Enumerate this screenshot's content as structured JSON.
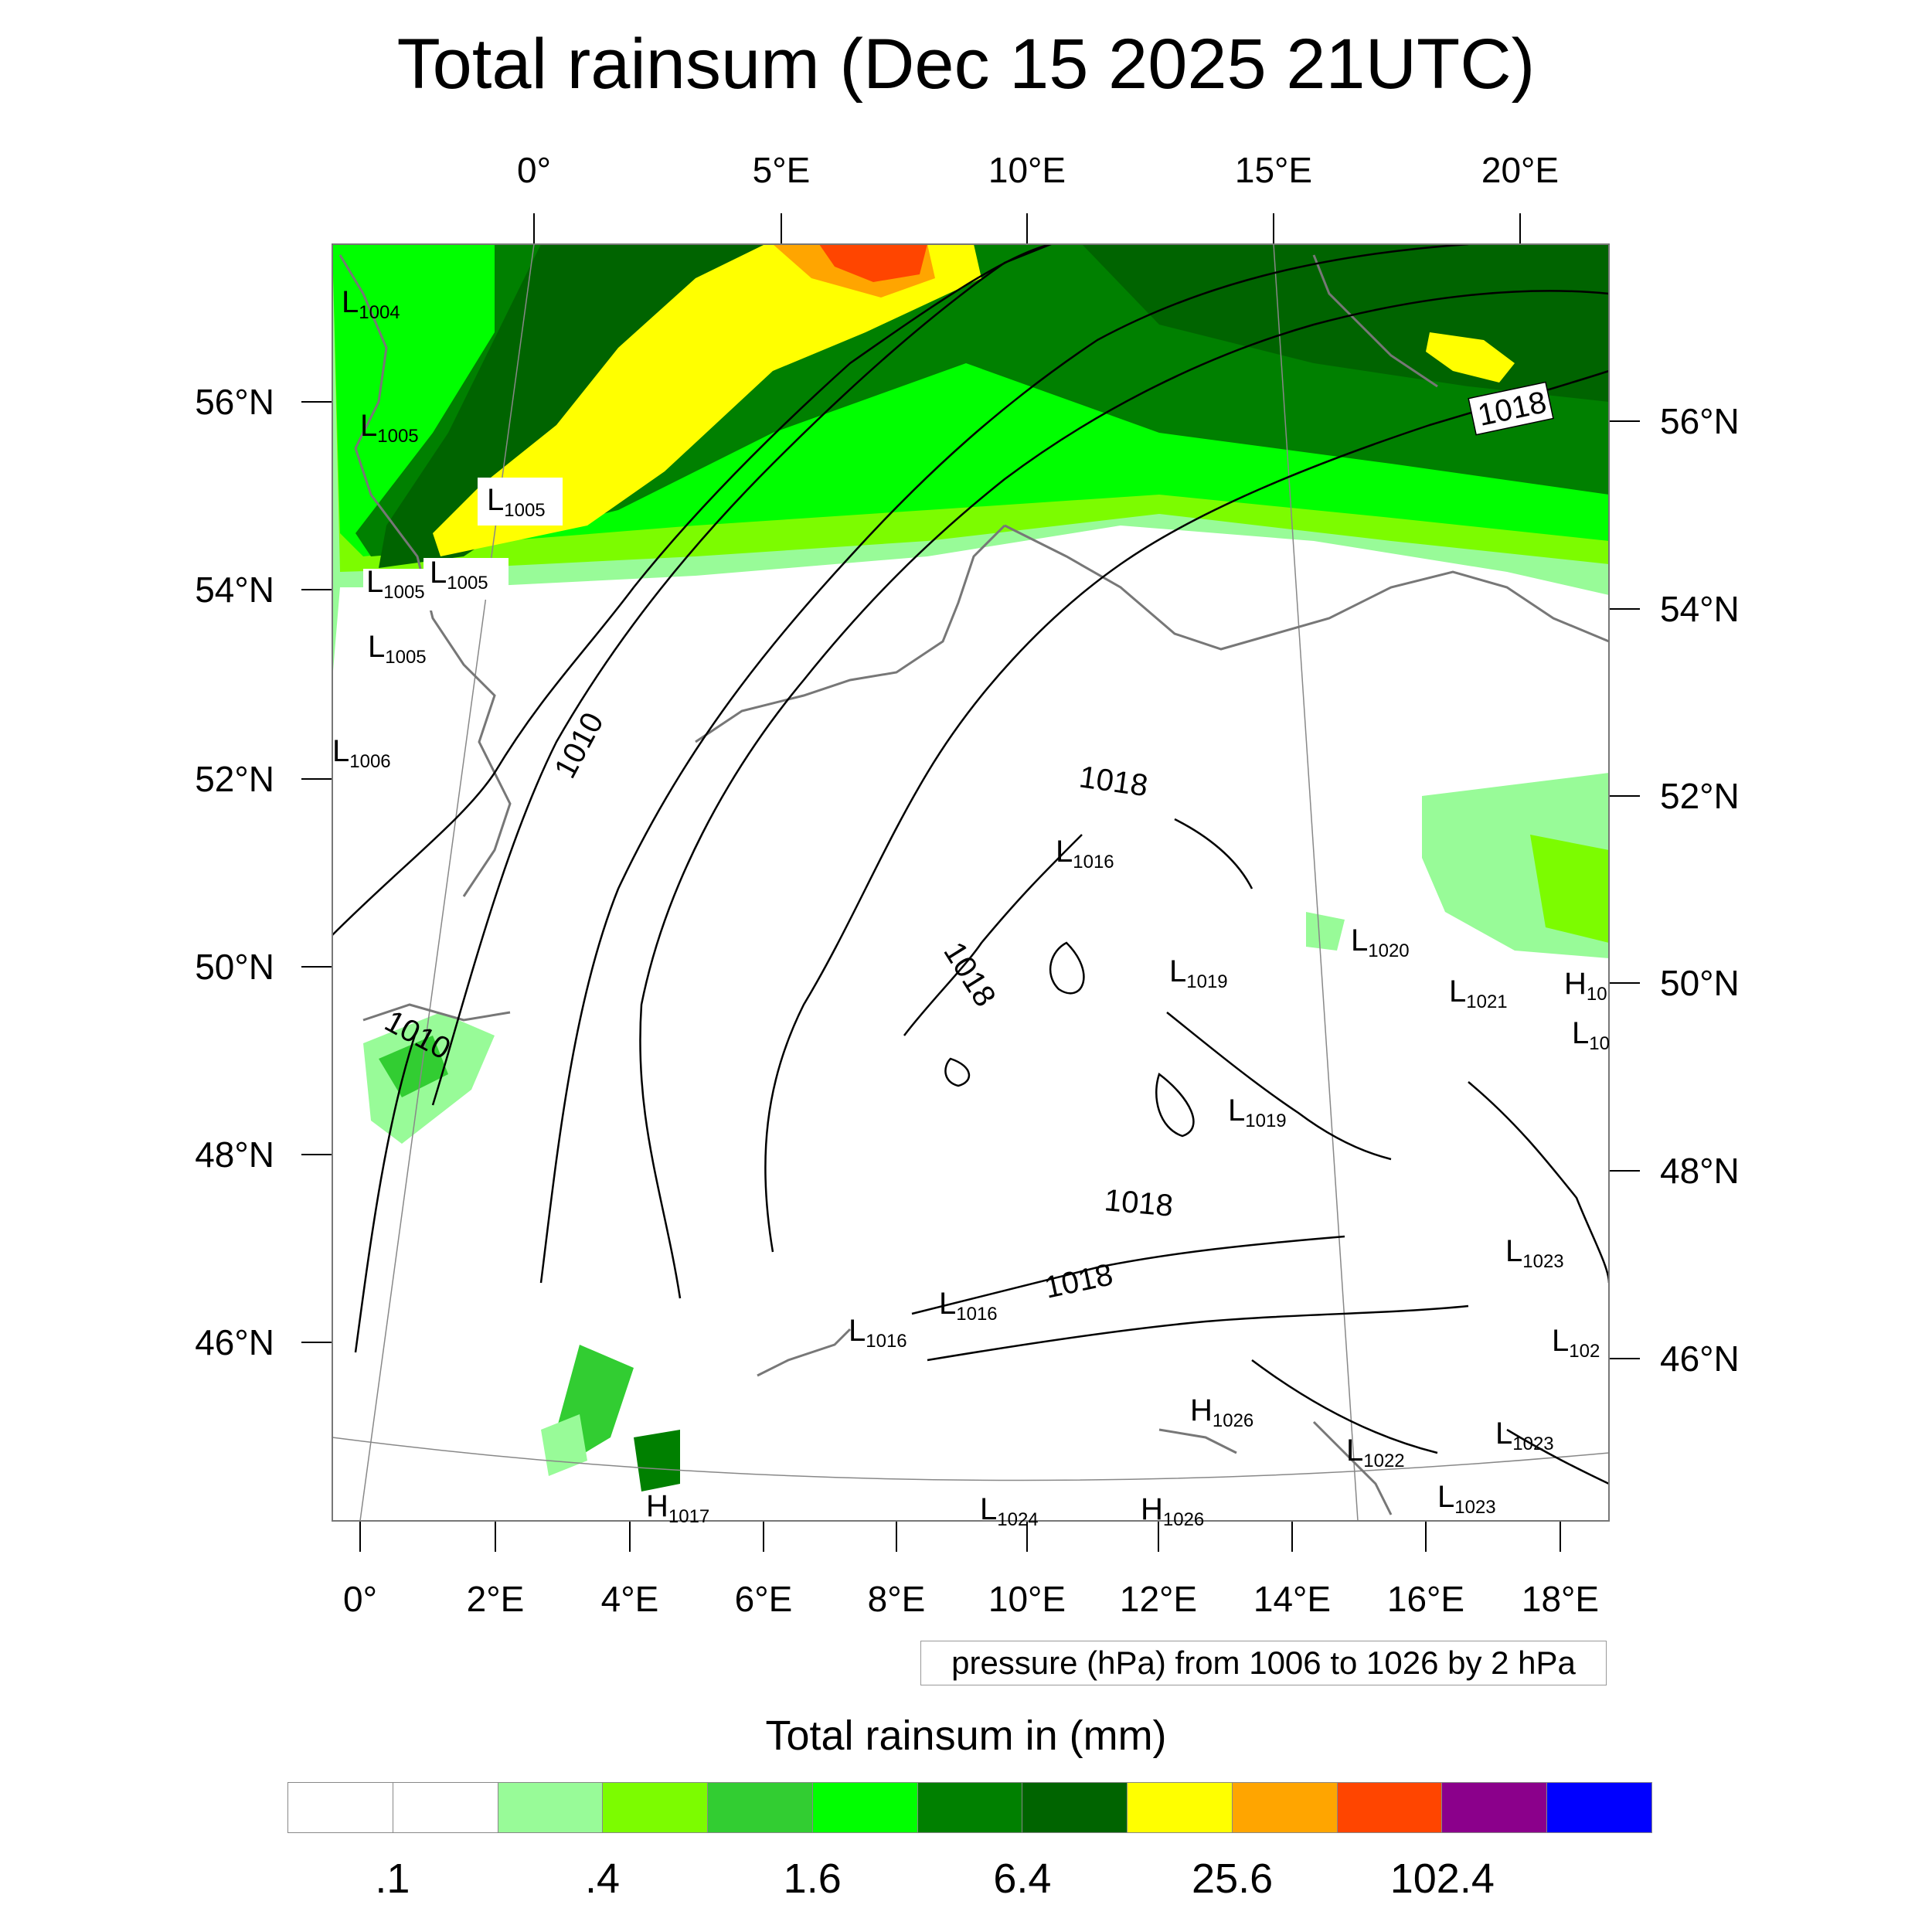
{
  "title": "Total rainsum (Dec 15 2025 21UTC)",
  "map": {
    "top_lon_labels": [
      "0°",
      "5°E",
      "10°E",
      "15°E",
      "20°E"
    ],
    "bottom_lon_labels": [
      "0°",
      "2°E",
      "4°E",
      "6°E",
      "8°E",
      "10°E",
      "12°E",
      "14°E",
      "16°E",
      "18°E"
    ],
    "left_lat_labels": [
      "56°N",
      "54°N",
      "52°N",
      "50°N",
      "48°N",
      "46°N"
    ],
    "right_lat_labels": [
      "56°N",
      "54°N",
      "52°N",
      "50°N",
      "48°N",
      "46°N"
    ],
    "isobar_labels": [
      "1010",
      "1010",
      "1018",
      "1018",
      "1018",
      "1018",
      "1018"
    ],
    "pressure_centers": [
      {
        "type": "L",
        "value": "1004"
      },
      {
        "type": "L",
        "value": "1005"
      },
      {
        "type": "L",
        "value": "1005"
      },
      {
        "type": "L",
        "value": "1005"
      },
      {
        "type": "L",
        "value": "1005"
      },
      {
        "type": "L",
        "value": "1005"
      },
      {
        "type": "L",
        "value": "1006"
      },
      {
        "type": "L",
        "value": "1016"
      },
      {
        "type": "L",
        "value": "1019"
      },
      {
        "type": "L",
        "value": "1020"
      },
      {
        "type": "L",
        "value": "1021"
      },
      {
        "type": "H",
        "value": "10"
      },
      {
        "type": "L",
        "value": "10"
      },
      {
        "type": "L",
        "value": "1019"
      },
      {
        "type": "L",
        "value": "1023"
      },
      {
        "type": "L",
        "value": "102"
      },
      {
        "type": "L",
        "value": "1016"
      },
      {
        "type": "L",
        "value": "1016"
      },
      {
        "type": "H",
        "value": "1026"
      },
      {
        "type": "L",
        "value": "1022"
      },
      {
        "type": "L",
        "value": "1023"
      },
      {
        "type": "L",
        "value": "1023"
      },
      {
        "type": "H",
        "value": "1017"
      },
      {
        "type": "L",
        "value": "1024"
      },
      {
        "type": "H",
        "value": "1026"
      }
    ]
  },
  "contour_note": "pressure (hPa) from 1006 to 1026 by 2 hPa",
  "colorbar": {
    "title": "Total rainsum in (mm)",
    "colors": [
      "#ffffff",
      "#ffffff",
      "#98fb98",
      "#7cfc00",
      "#32cd32",
      "#00ff00",
      "#008000",
      "#006400",
      "#ffff00",
      "#ffa500",
      "#ff4500",
      "#8b008b",
      "#0000ff"
    ],
    "tick_labels": [
      ".1",
      ".4",
      "1.6",
      "6.4",
      "25.6",
      "102.4"
    ]
  }
}
